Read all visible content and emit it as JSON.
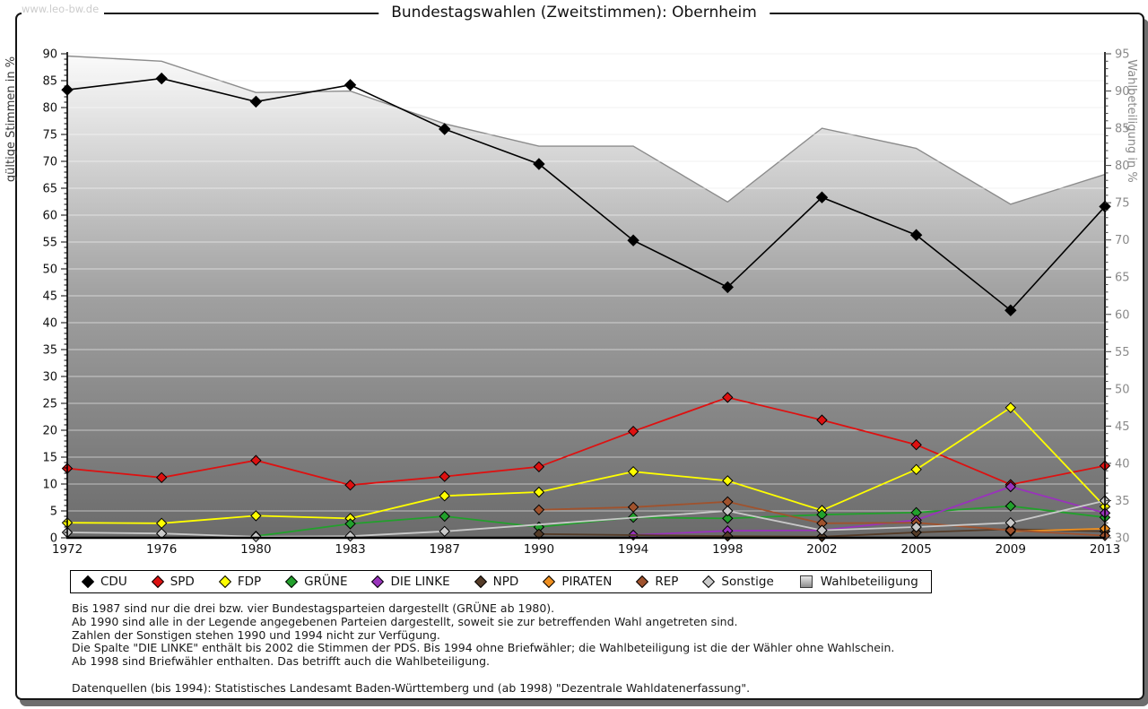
{
  "watermark": "www.leo-bw.de",
  "title": "Bundestagswahlen (Zweitstimmen): Obernheim",
  "chart_data": {
    "type": "line",
    "categories": [
      1972,
      1976,
      1980,
      1983,
      1987,
      1990,
      1994,
      1998,
      2002,
      2005,
      2009,
      2013
    ],
    "left_axis": {
      "label": "gültige Stimmen in %",
      "min": 0,
      "max": 90,
      "step": 5,
      "unit": "%"
    },
    "right_axis": {
      "label": "Wahlbeteiligung in %",
      "min": 30,
      "max": 95,
      "step": 5,
      "unit": "%"
    },
    "grid": "horizontal",
    "legend_position": "bottom",
    "series": [
      {
        "name": "CDU",
        "color": "#000000",
        "axis": "left",
        "values": [
          83.3,
          85.4,
          81.1,
          84.2,
          76.0,
          69.5,
          55.3,
          46.6,
          63.3,
          56.3,
          42.3,
          61.6
        ]
      },
      {
        "name": "SPD",
        "color": "#dd1111",
        "axis": "left",
        "values": [
          12.9,
          11.2,
          14.4,
          9.8,
          11.4,
          13.2,
          19.8,
          26.1,
          21.9,
          17.3,
          9.9,
          13.4
        ]
      },
      {
        "name": "FDP",
        "color": "#ffff00",
        "axis": "left",
        "values": [
          2.8,
          2.7,
          4.1,
          3.6,
          7.8,
          8.5,
          12.3,
          10.6,
          5.1,
          12.7,
          24.2,
          5.8
        ]
      },
      {
        "name": "GRÜNE",
        "color": "#22a02c",
        "axis": "left",
        "values": [
          null,
          null,
          0.3,
          2.6,
          4.0,
          2.0,
          3.8,
          3.6,
          4.3,
          4.7,
          5.9,
          3.8
        ]
      },
      {
        "name": "DIE LINKE",
        "color": "#9933bb",
        "axis": "left",
        "values": [
          null,
          null,
          null,
          null,
          null,
          null,
          0.5,
          1.3,
          1.4,
          3.3,
          9.5,
          4.6
        ]
      },
      {
        "name": "NPD",
        "color": "#553c28",
        "axis": "left",
        "values": [
          null,
          null,
          null,
          null,
          null,
          0.7,
          null,
          0.3,
          0.2,
          1.0,
          1.6,
          1.2
        ]
      },
      {
        "name": "PIRATEN",
        "color": "#ef8f1f",
        "axis": "left",
        "values": [
          null,
          null,
          null,
          null,
          null,
          null,
          null,
          null,
          null,
          null,
          1.2,
          1.7
        ]
      },
      {
        "name": "REP",
        "color": "#a0522d",
        "axis": "left",
        "values": [
          null,
          null,
          null,
          null,
          null,
          5.2,
          5.7,
          6.7,
          2.7,
          2.8,
          1.4,
          0.4
        ]
      },
      {
        "name": "Sonstige",
        "color": "#c9c9c9",
        "axis": "left",
        "values": [
          1.0,
          0.8,
          0.2,
          0.3,
          1.2,
          null,
          null,
          5.0,
          1.4,
          2.0,
          2.8,
          6.9
        ]
      },
      {
        "name": "Wahlbeteiligung",
        "color": "#8c8c8c",
        "axis": "right",
        "kind": "area",
        "values": [
          94.7,
          94.0,
          89.8,
          90.0,
          85.6,
          82.6,
          82.6,
          75.1,
          85.0,
          82.3,
          74.8,
          78.8
        ]
      }
    ]
  },
  "footnotes": [
    "Bis 1987 sind nur die drei bzw. vier Bundestagsparteien dargestellt (GRÜNE ab 1980).",
    "Ab 1990 sind alle in der Legende angegebenen Parteien dargestellt, soweit sie zur betreffenden Wahl angetreten sind.",
    "Zahlen der Sonstigen stehen 1990 und 1994 nicht zur Verfügung.",
    "Die Spalte \"DIE LINKE\" enthält bis 2002 die Stimmen der PDS. Bis 1994 ohne Briefwähler; die Wahlbeteiligung ist die der Wähler ohne Wahlschein.",
    "Ab 1998 sind Briefwähler enthalten. Das betrifft auch die Wahlbeteiligung."
  ],
  "source_line": "Datenquellen (bis 1994): Statistisches Landesamt Baden-Württemberg und (ab 1998) \"Dezentrale Wahldatenerfassung\"."
}
